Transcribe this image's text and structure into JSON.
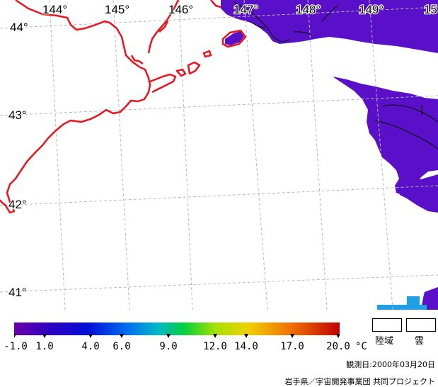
{
  "map": {
    "lon_labels": [
      "144°",
      "145°",
      "146°",
      "147°",
      "148°",
      "149°",
      "15"
    ],
    "lat_labels": [
      "44°",
      "43°",
      "42°",
      "41°"
    ],
    "colors": {
      "coastline": "#e8141e",
      "sst_water": "#5a10c8",
      "contour": "#000000",
      "graticule": "#b8b8b8"
    }
  },
  "colorbar": {
    "ticks": [
      "-1.0",
      "1.0",
      "4.0",
      "6.0",
      "9.0",
      "12.0",
      "14.0",
      "17.0",
      "20.0"
    ],
    "unit": "°C",
    "stops": [
      "#6a00a8",
      "#3000c0",
      "#0010d8",
      "#0070f0",
      "#00b8c8",
      "#00d040",
      "#a8e000",
      "#f0d000",
      "#f07000",
      "#c00000"
    ]
  },
  "keys": {
    "land_label": "陸域",
    "cloud_label": "雲"
  },
  "footer": {
    "observation": "観測日:2000年03月20日",
    "credit": "岩手県／宇宙開発事業団 共同プロジェクト"
  }
}
